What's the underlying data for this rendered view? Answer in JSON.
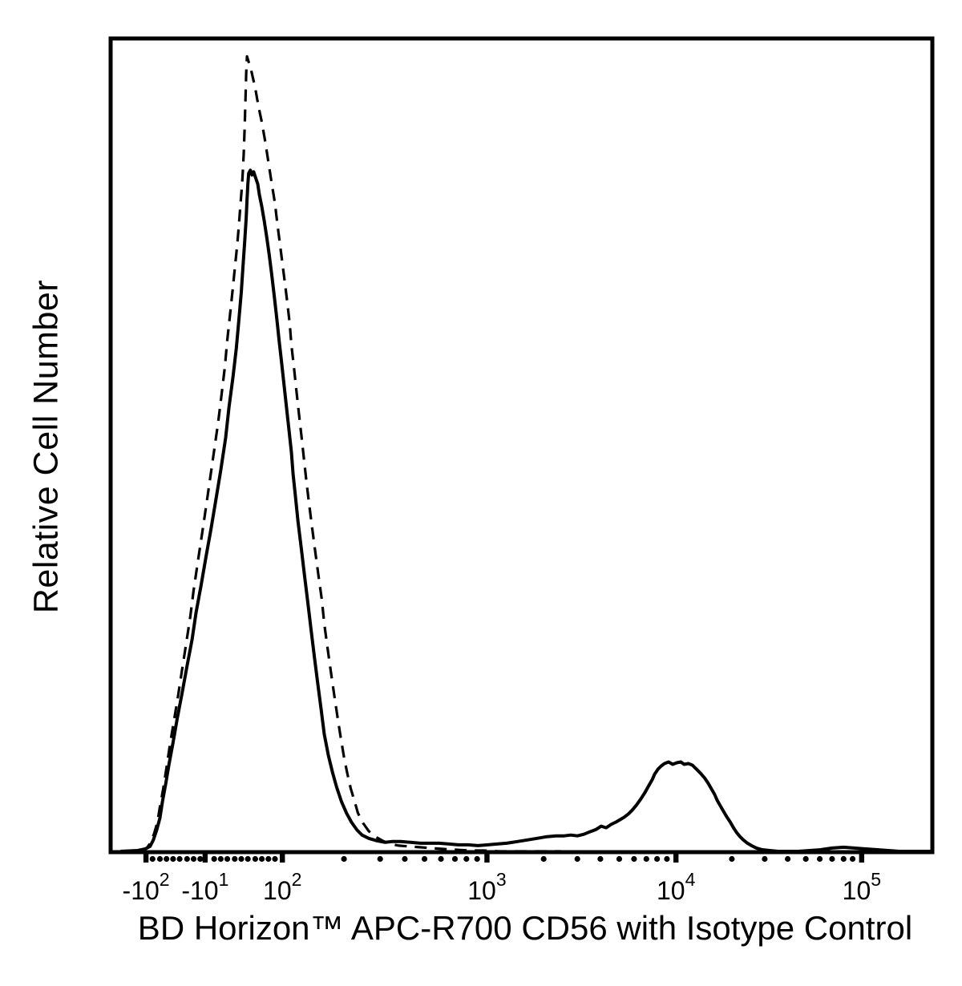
{
  "chart_data": {
    "type": "line",
    "subtype": "flow-cytometry-histogram-overlay",
    "title": "",
    "xlabel": "BD Horizon™ APC-R700 CD56 with Isotype Control",
    "ylabel": "Relative Cell Number",
    "ylim": [
      0,
      100
    ],
    "grid": false,
    "legend": "none",
    "line_color": "#000000",
    "axis_color": "#000000",
    "background_color": "#ffffff",
    "x_scale": {
      "type": "biexponential",
      "major_ticks": [
        {
          "base": "-10",
          "exp": "2",
          "pos": 0.043
        },
        {
          "base": "-10",
          "exp": "1",
          "pos": 0.115
        },
        {
          "base": "10",
          "exp": "2",
          "pos": 0.209
        },
        {
          "base": "10",
          "exp": "3",
          "pos": 0.458
        },
        {
          "base": "10",
          "exp": "4",
          "pos": 0.688
        },
        {
          "base": "10",
          "exp": "5",
          "pos": 0.914
        }
      ],
      "minor_tick_positions": [
        0.051,
        0.06,
        0.068,
        0.076,
        0.084,
        0.093,
        0.101,
        0.109,
        0.126,
        0.134,
        0.142,
        0.151,
        0.159,
        0.167,
        0.176,
        0.184,
        0.192,
        0.2,
        0.284,
        0.328,
        0.358,
        0.382,
        0.402,
        0.419,
        0.433,
        0.446,
        0.527,
        0.568,
        0.596,
        0.619,
        0.637,
        0.652,
        0.665,
        0.677,
        0.756,
        0.796,
        0.824,
        0.846,
        0.863,
        0.878,
        0.892,
        0.903
      ]
    },
    "series": [
      {
        "name": "APC-R700 CD56",
        "line_style": "solid",
        "color": "#000000",
        "points": [
          [
            0.012,
            0.0
          ],
          [
            0.033,
            0.1
          ],
          [
            0.042,
            0.3
          ],
          [
            0.048,
            0.6
          ],
          [
            0.052,
            1.4
          ],
          [
            0.056,
            2.6
          ],
          [
            0.06,
            4.1
          ],
          [
            0.063,
            6.1
          ],
          [
            0.067,
            8.3
          ],
          [
            0.071,
            10.7
          ],
          [
            0.076,
            13.4
          ],
          [
            0.081,
            16.3
          ],
          [
            0.087,
            19.5
          ],
          [
            0.093,
            22.8
          ],
          [
            0.099,
            26.0
          ],
          [
            0.104,
            29.4
          ],
          [
            0.11,
            32.7
          ],
          [
            0.116,
            36.2
          ],
          [
            0.122,
            39.6
          ],
          [
            0.128,
            43.2
          ],
          [
            0.134,
            46.9
          ],
          [
            0.14,
            50.9
          ],
          [
            0.144,
            54.6
          ],
          [
            0.149,
            58.4
          ],
          [
            0.153,
            61.9
          ],
          [
            0.156,
            65.3
          ],
          [
            0.159,
            68.8
          ],
          [
            0.161,
            71.8
          ],
          [
            0.163,
            74.8
          ],
          [
            0.165,
            77.9
          ],
          [
            0.166,
            80.1
          ],
          [
            0.167,
            82.1
          ],
          [
            0.168,
            83.4
          ],
          [
            0.17,
            83.8
          ],
          [
            0.172,
            83.2
          ],
          [
            0.174,
            83.6
          ],
          [
            0.176,
            83.0
          ],
          [
            0.179,
            82.1
          ],
          [
            0.181,
            80.8
          ],
          [
            0.184,
            79.3
          ],
          [
            0.187,
            77.5
          ],
          [
            0.19,
            75.5
          ],
          [
            0.193,
            73.4
          ],
          [
            0.196,
            71.0
          ],
          [
            0.199,
            68.4
          ],
          [
            0.202,
            65.7
          ],
          [
            0.205,
            62.9
          ],
          [
            0.208,
            60.2
          ],
          [
            0.211,
            57.4
          ],
          [
            0.214,
            54.6
          ],
          [
            0.217,
            51.9
          ],
          [
            0.22,
            49.1
          ],
          [
            0.222,
            46.4
          ],
          [
            0.225,
            43.6
          ],
          [
            0.228,
            40.6
          ],
          [
            0.232,
            37.3
          ],
          [
            0.236,
            33.9
          ],
          [
            0.24,
            30.6
          ],
          [
            0.244,
            27.2
          ],
          [
            0.248,
            23.9
          ],
          [
            0.252,
            20.7
          ],
          [
            0.256,
            17.6
          ],
          [
            0.26,
            14.4
          ],
          [
            0.265,
            11.8
          ],
          [
            0.27,
            9.7
          ],
          [
            0.275,
            7.9
          ],
          [
            0.281,
            6.1
          ],
          [
            0.287,
            4.7
          ],
          [
            0.293,
            3.6
          ],
          [
            0.3,
            2.6
          ],
          [
            0.306,
            2.0
          ],
          [
            0.314,
            1.6
          ],
          [
            0.324,
            1.3
          ],
          [
            0.334,
            1.1
          ],
          [
            0.343,
            1.2
          ],
          [
            0.353,
            1.2
          ],
          [
            0.365,
            1.1
          ],
          [
            0.377,
            1.0
          ],
          [
            0.388,
            1.0
          ],
          [
            0.4,
            1.0
          ],
          [
            0.412,
            0.9
          ],
          [
            0.423,
            0.8
          ],
          [
            0.435,
            0.8
          ],
          [
            0.447,
            0.7
          ],
          [
            0.459,
            0.8
          ],
          [
            0.47,
            0.9
          ],
          [
            0.482,
            1.0
          ],
          [
            0.495,
            1.2
          ],
          [
            0.507,
            1.4
          ],
          [
            0.519,
            1.6
          ],
          [
            0.531,
            1.8
          ],
          [
            0.542,
            1.9
          ],
          [
            0.552,
            1.9
          ],
          [
            0.56,
            2.0
          ],
          [
            0.568,
            1.9
          ],
          [
            0.576,
            2.1
          ],
          [
            0.583,
            2.4
          ],
          [
            0.591,
            2.7
          ],
          [
            0.597,
            3.1
          ],
          [
            0.603,
            2.9
          ],
          [
            0.609,
            3.3
          ],
          [
            0.615,
            3.6
          ],
          [
            0.62,
            3.9
          ],
          [
            0.625,
            4.2
          ],
          [
            0.63,
            4.6
          ],
          [
            0.635,
            5.1
          ],
          [
            0.64,
            5.7
          ],
          [
            0.645,
            6.4
          ],
          [
            0.65,
            7.2
          ],
          [
            0.655,
            8.1
          ],
          [
            0.659,
            8.8
          ],
          [
            0.662,
            9.5
          ],
          [
            0.666,
            10.1
          ],
          [
            0.67,
            10.5
          ],
          [
            0.674,
            10.8
          ],
          [
            0.679,
            11.0
          ],
          [
            0.684,
            10.7
          ],
          [
            0.689,
            10.9
          ],
          [
            0.694,
            11.0
          ],
          [
            0.698,
            10.7
          ],
          [
            0.703,
            10.8
          ],
          [
            0.708,
            10.6
          ],
          [
            0.713,
            10.1
          ],
          [
            0.718,
            9.6
          ],
          [
            0.723,
            9.0
          ],
          [
            0.727,
            8.4
          ],
          [
            0.731,
            7.7
          ],
          [
            0.735,
            7.0
          ],
          [
            0.738,
            6.3
          ],
          [
            0.742,
            5.6
          ],
          [
            0.746,
            4.9
          ],
          [
            0.75,
            4.2
          ],
          [
            0.754,
            3.6
          ],
          [
            0.758,
            2.9
          ],
          [
            0.762,
            2.3
          ],
          [
            0.766,
            1.8
          ],
          [
            0.77,
            1.4
          ],
          [
            0.775,
            1.0
          ],
          [
            0.78,
            0.7
          ],
          [
            0.786,
            0.4
          ],
          [
            0.793,
            0.2
          ],
          [
            0.802,
            0.1
          ],
          [
            0.812,
            0.0
          ],
          [
            0.823,
            0.0
          ],
          [
            0.837,
            0.0
          ],
          [
            0.851,
            0.1
          ],
          [
            0.864,
            0.2
          ],
          [
            0.878,
            0.4
          ],
          [
            0.892,
            0.5
          ],
          [
            0.905,
            0.4
          ],
          [
            0.919,
            0.3
          ],
          [
            0.933,
            0.2
          ],
          [
            0.946,
            0.1
          ],
          [
            0.96,
            0.0
          ],
          [
            0.978,
            0.0
          ],
          [
            1.0,
            0.0
          ]
        ]
      },
      {
        "name": "Isotype Control",
        "line_style": "dashed",
        "color": "#000000",
        "points": [
          [
            0.012,
            0.0
          ],
          [
            0.035,
            0.1
          ],
          [
            0.044,
            0.4
          ],
          [
            0.049,
            1.1
          ],
          [
            0.053,
            2.2
          ],
          [
            0.057,
            3.6
          ],
          [
            0.06,
            5.5
          ],
          [
            0.064,
            7.7
          ],
          [
            0.068,
            10.3
          ],
          [
            0.072,
            13.0
          ],
          [
            0.077,
            16.0
          ],
          [
            0.082,
            19.1
          ],
          [
            0.087,
            22.4
          ],
          [
            0.092,
            25.6
          ],
          [
            0.097,
            28.9
          ],
          [
            0.101,
            32.1
          ],
          [
            0.106,
            35.5
          ],
          [
            0.111,
            38.9
          ],
          [
            0.116,
            42.3
          ],
          [
            0.121,
            45.8
          ],
          [
            0.126,
            49.3
          ],
          [
            0.131,
            52.9
          ],
          [
            0.135,
            56.2
          ],
          [
            0.139,
            59.6
          ],
          [
            0.142,
            62.9
          ],
          [
            0.145,
            65.7
          ],
          [
            0.148,
            68.6
          ],
          [
            0.151,
            71.6
          ],
          [
            0.154,
            74.6
          ],
          [
            0.156,
            76.9
          ],
          [
            0.158,
            79.5
          ],
          [
            0.16,
            82.1
          ],
          [
            0.161,
            83.8
          ],
          [
            0.162,
            86.0
          ],
          [
            0.163,
            88.8
          ],
          [
            0.164,
            92.1
          ],
          [
            0.165,
            95.7
          ],
          [
            0.166,
            97.8
          ],
          [
            0.171,
            96.1
          ],
          [
            0.176,
            93.9
          ],
          [
            0.18,
            91.6
          ],
          [
            0.184,
            89.7
          ],
          [
            0.188,
            87.4
          ],
          [
            0.192,
            84.8
          ],
          [
            0.196,
            82.2
          ],
          [
            0.2,
            79.7
          ],
          [
            0.203,
            77.1
          ],
          [
            0.206,
            74.8
          ],
          [
            0.209,
            72.4
          ],
          [
            0.212,
            70.0
          ],
          [
            0.215,
            67.5
          ],
          [
            0.218,
            64.9
          ],
          [
            0.22,
            62.3
          ],
          [
            0.223,
            59.6
          ],
          [
            0.226,
            56.8
          ],
          [
            0.229,
            54.0
          ],
          [
            0.232,
            51.3
          ],
          [
            0.235,
            48.5
          ],
          [
            0.238,
            45.8
          ],
          [
            0.241,
            43.2
          ],
          [
            0.245,
            40.0
          ],
          [
            0.249,
            36.9
          ],
          [
            0.253,
            33.9
          ],
          [
            0.257,
            31.0
          ],
          [
            0.26,
            28.0
          ],
          [
            0.264,
            25.0
          ],
          [
            0.268,
            22.1
          ],
          [
            0.272,
            19.3
          ],
          [
            0.276,
            16.6
          ],
          [
            0.28,
            14.0
          ],
          [
            0.284,
            11.6
          ],
          [
            0.288,
            9.6
          ],
          [
            0.292,
            7.8
          ],
          [
            0.297,
            6.1
          ],
          [
            0.301,
            4.7
          ],
          [
            0.307,
            3.5
          ],
          [
            0.314,
            2.5
          ],
          [
            0.322,
            1.8
          ],
          [
            0.331,
            1.3
          ],
          [
            0.34,
            0.9
          ],
          [
            0.351,
            0.7
          ],
          [
            0.363,
            0.6
          ],
          [
            0.376,
            0.5
          ],
          [
            0.389,
            0.4
          ],
          [
            0.404,
            0.3
          ],
          [
            0.42,
            0.2
          ],
          [
            0.436,
            0.1
          ],
          [
            0.454,
            0.1
          ],
          [
            0.473,
            0.0
          ],
          [
            0.496,
            0.0
          ],
          [
            0.521,
            0.0
          ],
          [
            0.548,
            0.0
          ]
        ]
      }
    ]
  }
}
